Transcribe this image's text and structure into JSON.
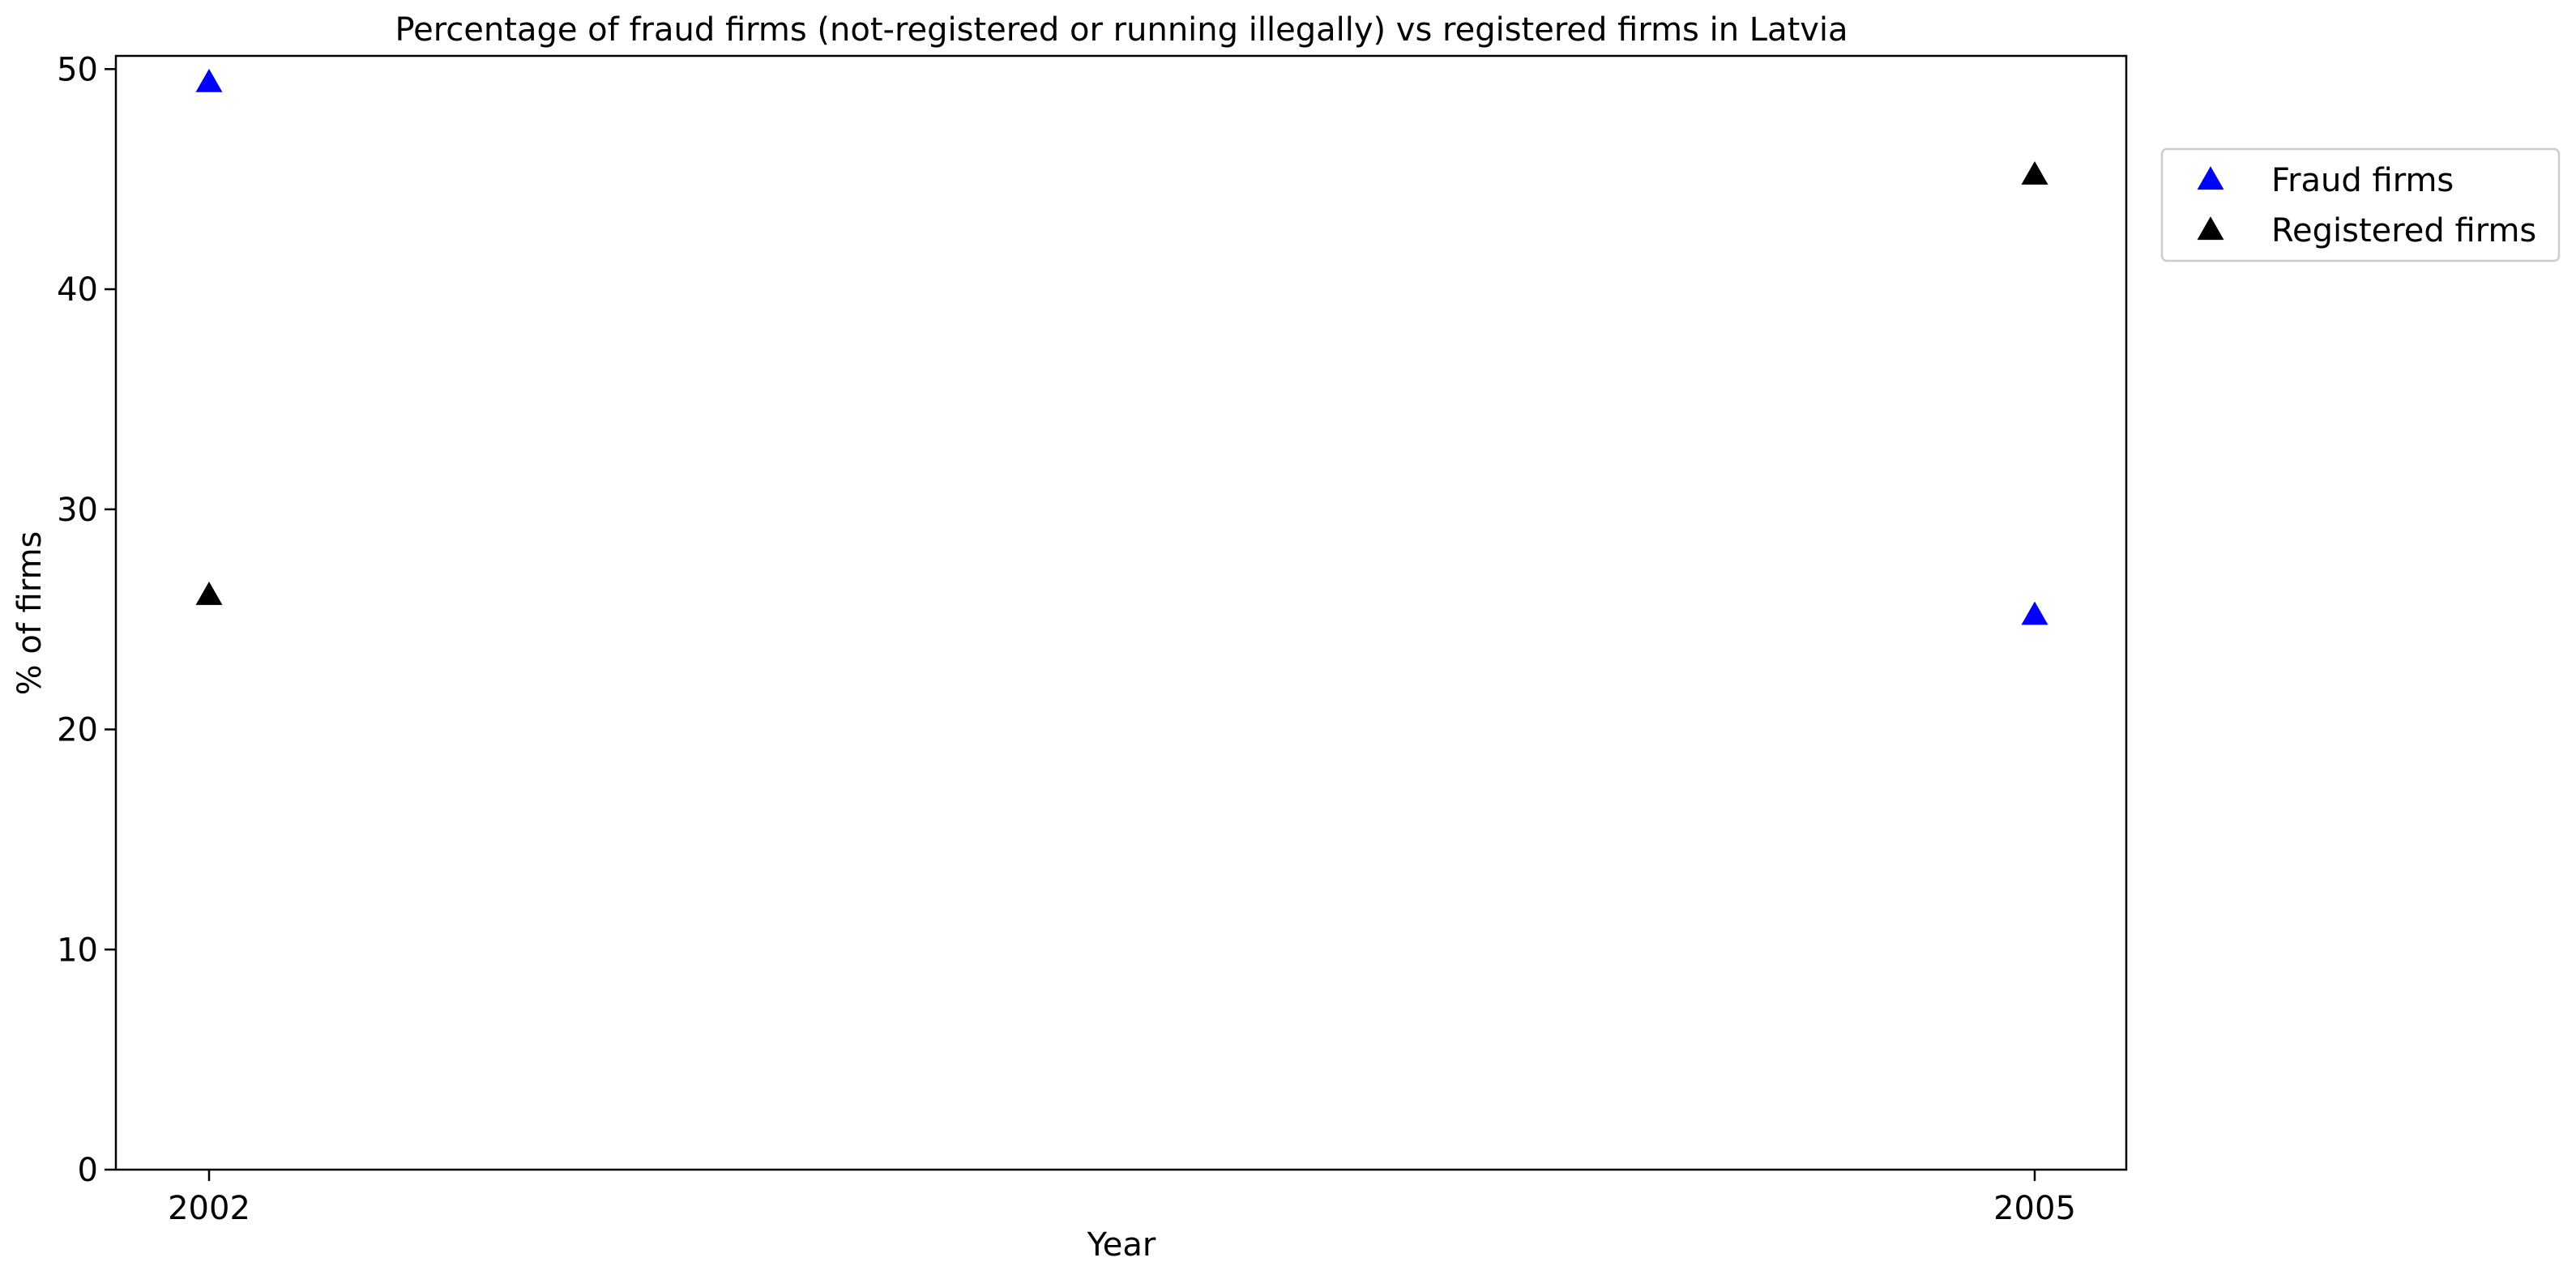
{
  "chart_data": {
    "type": "scatter",
    "title": "Percentage of fraud firms (not-registered or running illegally) vs registered firms in Latvia",
    "xlabel": "Year",
    "ylabel": "% of firms",
    "x": [
      "2002",
      "2005"
    ],
    "ylim": [
      0,
      50.6
    ],
    "yticks": [
      "0",
      "10",
      "20",
      "30",
      "40",
      "50"
    ],
    "grid": false,
    "legend_position": "outside right, top",
    "series": [
      {
        "name": "Fraud firms",
        "color": "#0000ff",
        "marker": "triangle-up",
        "values": [
          49.4,
          25.2
        ]
      },
      {
        "name": "Registered firms",
        "color": "#000000",
        "marker": "triangle-up",
        "values": [
          26.1,
          45.2
        ]
      }
    ]
  }
}
